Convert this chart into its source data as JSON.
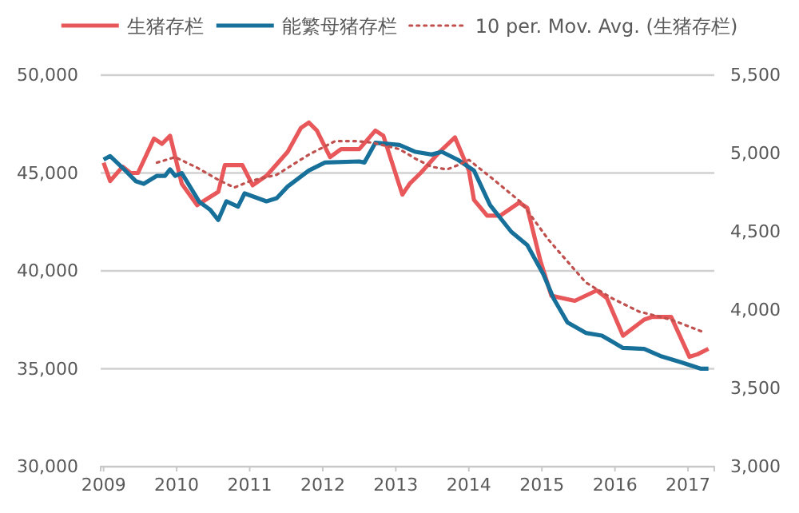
{
  "chart_data": {
    "type": "line",
    "legend": "top",
    "grid": "y",
    "tick_labels": [
      "x",
      "y",
      "y2"
    ],
    "xlim": [
      2008.96,
      2017.36
    ],
    "xticks": [
      2009,
      2010,
      2011,
      2012,
      2013,
      2014,
      2015,
      2016,
      2017
    ],
    "ylim": [
      30000,
      50000
    ],
    "yticks": [
      {
        "value": 30000,
        "label": "30,000"
      },
      {
        "value": 35000,
        "label": "35,000"
      },
      {
        "value": 40000,
        "label": "40,000"
      },
      {
        "value": 45000,
        "label": "45,000"
      },
      {
        "value": 50000,
        "label": "50,000"
      }
    ],
    "y2lim": [
      3000,
      5500
    ],
    "y2ticks": [
      {
        "value": 3000,
        "label": "3,000"
      },
      {
        "value": 3500,
        "label": "3,500"
      },
      {
        "value": 4000,
        "label": "4,000"
      },
      {
        "value": 4500,
        "label": "4,500"
      },
      {
        "value": 5000,
        "label": "5,000"
      },
      {
        "value": 5500,
        "label": "5,500"
      }
    ],
    "series": [
      {
        "name": "生猪存栏",
        "color": "#e8585a",
        "line_style": "solid",
        "x": [
          2009.0,
          2009.09,
          2009.26,
          2009.37,
          2009.47,
          2009.69,
          2009.8,
          2009.91,
          2010.07,
          2010.28,
          2010.57,
          2010.66,
          2010.9,
          2011.04,
          2011.23,
          2011.52,
          2011.7,
          2011.81,
          2011.92,
          2012.1,
          2012.25,
          2012.5,
          2012.72,
          2012.83,
          2013.09,
          2013.19,
          2013.34,
          2013.6,
          2013.81,
          2014.0,
          2014.07,
          2014.25,
          2014.43,
          2014.69,
          2014.8,
          2014.98,
          2015.13,
          2015.45,
          2015.75,
          2015.89,
          2016.11,
          2016.4,
          2016.51,
          2016.77,
          2017.02,
          2017.13,
          2017.28
        ],
        "values": [
          45530,
          44590,
          45320,
          45000,
          45000,
          46760,
          46490,
          46900,
          44450,
          43360,
          44040,
          45400,
          45400,
          44370,
          44860,
          46080,
          47300,
          47580,
          47170,
          45810,
          46220,
          46220,
          47170,
          46900,
          43900,
          44450,
          45000,
          46080,
          46820,
          45130,
          43630,
          42820,
          42820,
          43490,
          43220,
          40510,
          38730,
          38470,
          39000,
          38600,
          36690,
          37510,
          37650,
          37650,
          35610,
          35740,
          36020
        ]
      },
      {
        "name": "能繁母猪存栏",
        "color": "#17709a",
        "line_style": "solid",
        "axis": "y2",
        "x": [
          2009.0,
          2009.09,
          2009.26,
          2009.44,
          2009.55,
          2009.73,
          2009.84,
          2009.91,
          2009.98,
          2010.07,
          2010.31,
          2010.46,
          2010.57,
          2010.68,
          2010.84,
          2010.93,
          2011.23,
          2011.37,
          2011.52,
          2011.81,
          2012.03,
          2012.5,
          2012.57,
          2012.72,
          2013.05,
          2013.27,
          2013.49,
          2013.63,
          2013.85,
          2014.07,
          2014.29,
          2014.58,
          2014.8,
          2015.02,
          2015.16,
          2015.35,
          2015.6,
          2015.82,
          2016.11,
          2016.4,
          2016.62,
          2016.91,
          2017.17,
          2017.28
        ],
        "values": [
          4960,
          4983,
          4908,
          4823,
          4806,
          4857,
          4857,
          4898,
          4857,
          4874,
          4691,
          4640,
          4575,
          4694,
          4660,
          4745,
          4694,
          4714,
          4789,
          4891,
          4942,
          4949,
          4942,
          5068,
          5054,
          5010,
          4993,
          5010,
          4959,
          4891,
          4670,
          4500,
          4415,
          4228,
          4074,
          3921,
          3854,
          3837,
          3758,
          3752,
          3707,
          3666,
          3626,
          3626
        ]
      },
      {
        "name": "10 per. Mov. Avg. (生猪存栏)",
        "color": "#c0504d",
        "line_style": "dotted",
        "x": [
          2009.73,
          2009.98,
          2010.28,
          2010.6,
          2010.79,
          2011.01,
          2011.37,
          2011.81,
          2012.17,
          2012.46,
          2012.68,
          2013.05,
          2013.27,
          2013.49,
          2013.7,
          2013.85,
          2014.0,
          2014.32,
          2014.72,
          2015.09,
          2015.6,
          2015.96,
          2016.33,
          2016.77,
          2017.24
        ],
        "values": [
          45530,
          45810,
          45270,
          44590,
          44260,
          44590,
          44910,
          45940,
          46630,
          46630,
          46550,
          46220,
          45730,
          45320,
          45180,
          45400,
          45670,
          44720,
          43490,
          41590,
          39410,
          38600,
          37920,
          37510,
          36830
        ]
      }
    ]
  }
}
